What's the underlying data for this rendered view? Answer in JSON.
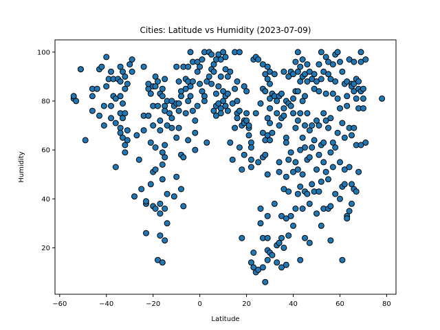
{
  "chart_data": {
    "type": "scatter",
    "title": "Cities: Latitude vs Humidity (2023-07-09)",
    "xlabel": "Latitude",
    "ylabel": "Humidity",
    "xlim": [
      -62,
      84
    ],
    "ylim": [
      1,
      105
    ],
    "xticks": [
      -60,
      -40,
      -20,
      0,
      20,
      40,
      60,
      80
    ],
    "yticks": [
      20,
      40,
      60,
      80,
      100
    ],
    "grid": false,
    "marker_color": "#1f77b4",
    "edge_color": "#000000",
    "points": [
      [
        -54,
        81
      ],
      [
        -54,
        82
      ],
      [
        -53,
        80
      ],
      [
        -51,
        93
      ],
      [
        -51,
        93
      ],
      [
        -49,
        64
      ],
      [
        -46,
        85
      ],
      [
        -46,
        76
      ],
      [
        -46,
        82
      ],
      [
        -44,
        85
      ],
      [
        -43,
        93
      ],
      [
        -43,
        74
      ],
      [
        -42,
        94
      ],
      [
        -41,
        70
      ],
      [
        -41,
        78
      ],
      [
        -40,
        86
      ],
      [
        -40,
        98
      ],
      [
        -39,
        89
      ],
      [
        -38,
        92
      ],
      [
        -38,
        78
      ],
      [
        -38,
        73
      ],
      [
        -37,
        89
      ],
      [
        -37,
        82
      ],
      [
        -36,
        81
      ],
      [
        -36,
        71
      ],
      [
        -36,
        53
      ],
      [
        -35,
        89
      ],
      [
        -34,
        94
      ],
      [
        -34,
        88
      ],
      [
        -34,
        82
      ],
      [
        -34,
        75
      ],
      [
        -34,
        69
      ],
      [
        -34,
        67
      ],
      [
        -33,
        92
      ],
      [
        -33,
        79
      ],
      [
        -33,
        73
      ],
      [
        -33,
        65
      ],
      [
        -32,
        90
      ],
      [
        -32,
        85
      ],
      [
        -32,
        75
      ],
      [
        -32,
        62
      ],
      [
        -32,
        59
      ],
      [
        -31,
        87
      ],
      [
        -31,
        68
      ],
      [
        -31,
        64
      ],
      [
        -30,
        95
      ],
      [
        -29,
        97
      ],
      [
        -29,
        92
      ],
      [
        -28,
        41
      ],
      [
        -27,
        66
      ],
      [
        -26,
        56
      ],
      [
        -25,
        44
      ],
      [
        -24,
        68
      ],
      [
        -24,
        74
      ],
      [
        -24,
        94
      ],
      [
        -23,
        38
      ],
      [
        -23,
        26
      ],
      [
        -23,
        39
      ],
      [
        -22,
        85
      ],
      [
        -22,
        87
      ],
      [
        -22,
        74
      ],
      [
        -21,
        83
      ],
      [
        -21,
        63
      ],
      [
        -21,
        46
      ],
      [
        -20,
        86
      ],
      [
        -20,
        78
      ],
      [
        -20,
        70
      ],
      [
        -20,
        51
      ],
      [
        -20,
        37
      ],
      [
        -19,
        90
      ],
      [
        -19,
        86
      ],
      [
        -19,
        61
      ],
      [
        -19,
        52
      ],
      [
        -19,
        36
      ],
      [
        -18,
        88
      ],
      [
        -18,
        78
      ],
      [
        -18,
        15
      ],
      [
        -17,
        83
      ],
      [
        -17,
        72
      ],
      [
        -17,
        68
      ],
      [
        -17,
        38
      ],
      [
        -17,
        34
      ],
      [
        -17,
        25
      ],
      [
        -16,
        85
      ],
      [
        -16,
        82
      ],
      [
        -16,
        59
      ],
      [
        -16,
        54
      ],
      [
        -16,
        48
      ],
      [
        -16,
        14
      ],
      [
        -15,
        89
      ],
      [
        -15,
        78
      ],
      [
        -15,
        76
      ],
      [
        -15,
        62
      ],
      [
        -15,
        57
      ],
      [
        -15,
        36
      ],
      [
        -15,
        23
      ],
      [
        -14,
        80
      ],
      [
        -14,
        70
      ],
      [
        -14,
        42
      ],
      [
        -14,
        30
      ],
      [
        -13,
        75
      ],
      [
        -12,
        73
      ],
      [
        -12,
        69
      ],
      [
        -12,
        80
      ],
      [
        -11,
        78
      ],
      [
        -11,
        41
      ],
      [
        -10,
        94
      ],
      [
        -10,
        79
      ],
      [
        -10,
        65
      ],
      [
        -10,
        49
      ],
      [
        -9,
        88
      ],
      [
        -9,
        76
      ],
      [
        -9,
        69
      ],
      [
        -9,
        79
      ],
      [
        -8,
        82
      ],
      [
        -8,
        84
      ],
      [
        -8,
        58
      ],
      [
        -8,
        44
      ],
      [
        -7,
        94
      ],
      [
        -7,
        57
      ],
      [
        -7,
        37
      ],
      [
        -6,
        89
      ],
      [
        -6,
        85
      ],
      [
        -6,
        75
      ],
      [
        -5,
        94
      ],
      [
        -5,
        88
      ],
      [
        -5,
        80
      ],
      [
        -5,
        64
      ],
      [
        -4,
        100
      ],
      [
        -4,
        86
      ],
      [
        -4,
        82
      ],
      [
        -3,
        96
      ],
      [
        -3,
        88
      ],
      [
        -3,
        76
      ],
      [
        -2,
        72
      ],
      [
        -2,
        67
      ],
      [
        -2,
        60
      ],
      [
        -1,
        96
      ],
      [
        -1,
        92
      ],
      [
        -1,
        78
      ],
      [
        0,
        94
      ],
      [
        0,
        87
      ],
      [
        1,
        97
      ],
      [
        1,
        84
      ],
      [
        2,
        100
      ],
      [
        2,
        80
      ],
      [
        2,
        82
      ],
      [
        3,
        88
      ],
      [
        3,
        63
      ],
      [
        4,
        100
      ],
      [
        4,
        90
      ],
      [
        5,
        87
      ],
      [
        5,
        93
      ],
      [
        5,
        99
      ],
      [
        6,
        92
      ],
      [
        6,
        76
      ],
      [
        6,
        95
      ],
      [
        7,
        78
      ],
      [
        7,
        83
      ],
      [
        7,
        74
      ],
      [
        7,
        97
      ],
      [
        8,
        99
      ],
      [
        8,
        86
      ],
      [
        8,
        79
      ],
      [
        9,
        97
      ],
      [
        9,
        77
      ],
      [
        9,
        75
      ],
      [
        9,
        90
      ],
      [
        10,
        100
      ],
      [
        10,
        84
      ],
      [
        10,
        80
      ],
      [
        11,
        98
      ],
      [
        11,
        93
      ],
      [
        11,
        78
      ],
      [
        11,
        82
      ],
      [
        12,
        90
      ],
      [
        12,
        83
      ],
      [
        12,
        76
      ],
      [
        13,
        92
      ],
      [
        13,
        63
      ],
      [
        14,
        56
      ],
      [
        14,
        79
      ],
      [
        15,
        85
      ],
      [
        15,
        100
      ],
      [
        15,
        69
      ],
      [
        16,
        88
      ],
      [
        16,
        80
      ],
      [
        16,
        75
      ],
      [
        16,
        73
      ],
      [
        17,
        100
      ],
      [
        17,
        76
      ],
      [
        17,
        61
      ],
      [
        18,
        52
      ],
      [
        18,
        70
      ],
      [
        18,
        24
      ],
      [
        19,
        86
      ],
      [
        19,
        72
      ],
      [
        19,
        71
      ],
      [
        19,
        58
      ],
      [
        20,
        84
      ],
      [
        20,
        75
      ],
      [
        20,
        72
      ],
      [
        21,
        69
      ],
      [
        21,
        70
      ],
      [
        21,
        66
      ],
      [
        22,
        63
      ],
      [
        22,
        61
      ],
      [
        22,
        56
      ],
      [
        22,
        53
      ],
      [
        22,
        14
      ],
      [
        23,
        97
      ],
      [
        23,
        18
      ],
      [
        23,
        12
      ],
      [
        24,
        98
      ],
      [
        24,
        75
      ],
      [
        24,
        10
      ],
      [
        25,
        97
      ],
      [
        25,
        55
      ],
      [
        25,
        11
      ],
      [
        26,
        79
      ],
      [
        26,
        36
      ],
      [
        26,
        30
      ],
      [
        27,
        95
      ],
      [
        27,
        85
      ],
      [
        27,
        67
      ],
      [
        27,
        57
      ],
      [
        27,
        12
      ],
      [
        27,
        24
      ],
      [
        28,
        91
      ],
      [
        28,
        84
      ],
      [
        28,
        64
      ],
      [
        28,
        58
      ],
      [
        28,
        6
      ],
      [
        29,
        94
      ],
      [
        29,
        89
      ],
      [
        29,
        73
      ],
      [
        29,
        66
      ],
      [
        29,
        50
      ],
      [
        29,
        33
      ],
      [
        29,
        24
      ],
      [
        29,
        19
      ],
      [
        29,
        15
      ],
      [
        30,
        92
      ],
      [
        30,
        87
      ],
      [
        30,
        81
      ],
      [
        30,
        77
      ],
      [
        30,
        71
      ],
      [
        30,
        64
      ],
      [
        30,
        18
      ],
      [
        31,
        83
      ],
      [
        31,
        67
      ],
      [
        31,
        17
      ],
      [
        32,
        91
      ],
      [
        32,
        82
      ],
      [
        32,
        38
      ],
      [
        33,
        80
      ],
      [
        33,
        75
      ],
      [
        33,
        21
      ],
      [
        33,
        14
      ],
      [
        34,
        82
      ],
      [
        34,
        70
      ],
      [
        34,
        55
      ],
      [
        34,
        51
      ],
      [
        34,
        22
      ],
      [
        35,
        83
      ],
      [
        35,
        73
      ],
      [
        35,
        33
      ],
      [
        35,
        24
      ],
      [
        35,
        12
      ],
      [
        36,
        92
      ],
      [
        36,
        77
      ],
      [
        36,
        74
      ],
      [
        36,
        44
      ],
      [
        36,
        20
      ],
      [
        37,
        80
      ],
      [
        37,
        65
      ],
      [
        37,
        63
      ],
      [
        37,
        49
      ],
      [
        37,
        32
      ],
      [
        37,
        13
      ],
      [
        38,
        90
      ],
      [
        38,
        79
      ],
      [
        38,
        56
      ],
      [
        38,
        43
      ],
      [
        38,
        25
      ],
      [
        39,
        92
      ],
      [
        39,
        78
      ],
      [
        39,
        59
      ],
      [
        39,
        33
      ],
      [
        40,
        91
      ],
      [
        40,
        81
      ],
      [
        40,
        75
      ],
      [
        40,
        51
      ],
      [
        40,
        29
      ],
      [
        41,
        96
      ],
      [
        41,
        84
      ],
      [
        41,
        69
      ],
      [
        41,
        55
      ],
      [
        41,
        36
      ],
      [
        42,
        100
      ],
      [
        42,
        92
      ],
      [
        42,
        84
      ],
      [
        42,
        72
      ],
      [
        42,
        52
      ],
      [
        42,
        42
      ],
      [
        43,
        94
      ],
      [
        43,
        88
      ],
      [
        43,
        75
      ],
      [
        43,
        60
      ],
      [
        43,
        45
      ],
      [
        43,
        15
      ],
      [
        44,
        97
      ],
      [
        44,
        90
      ],
      [
        44,
        80
      ],
      [
        44,
        65
      ],
      [
        44,
        50
      ],
      [
        44,
        36
      ],
      [
        45,
        91
      ],
      [
        45,
        82
      ],
      [
        45,
        70
      ],
      [
        45,
        61
      ],
      [
        45,
        43
      ],
      [
        45,
        24
      ],
      [
        46,
        95
      ],
      [
        46,
        88
      ],
      [
        46,
        75
      ],
      [
        46,
        56
      ],
      [
        46,
        42
      ],
      [
        47,
        92
      ],
      [
        47,
        68
      ],
      [
        47,
        57
      ],
      [
        47,
        38
      ],
      [
        47,
        22
      ],
      [
        48,
        89
      ],
      [
        48,
        70
      ],
      [
        48,
        61
      ],
      [
        48,
        46
      ],
      [
        49,
        91
      ],
      [
        49,
        85
      ],
      [
        49,
        64
      ],
      [
        49,
        43
      ],
      [
        50,
        88
      ],
      [
        50,
        72
      ],
      [
        50,
        52
      ],
      [
        50,
        34
      ],
      [
        51,
        95
      ],
      [
        51,
        84
      ],
      [
        51,
        70
      ],
      [
        51,
        58
      ],
      [
        51,
        43
      ],
      [
        52,
        100
      ],
      [
        52,
        89
      ],
      [
        52,
        62
      ],
      [
        52,
        47
      ],
      [
        52,
        29
      ],
      [
        53,
        92
      ],
      [
        53,
        75
      ],
      [
        53,
        63
      ],
      [
        53,
        55
      ],
      [
        53,
        36
      ],
      [
        54,
        98
      ],
      [
        54,
        83
      ],
      [
        54,
        72
      ],
      [
        54,
        51
      ],
      [
        55,
        96
      ],
      [
        55,
        91
      ],
      [
        55,
        69
      ],
      [
        55,
        48
      ],
      [
        55,
        36
      ],
      [
        56,
        89
      ],
      [
        56,
        73
      ],
      [
        56,
        59
      ],
      [
        56,
        37
      ],
      [
        56,
        23
      ],
      [
        57,
        95
      ],
      [
        57,
        83
      ],
      [
        57,
        63
      ],
      [
        57,
        53
      ],
      [
        58,
        99
      ],
      [
        58,
        88
      ],
      [
        58,
        61
      ],
      [
        58,
        42
      ],
      [
        59,
        100
      ],
      [
        59,
        81
      ],
      [
        59,
        67
      ],
      [
        60,
        96
      ],
      [
        60,
        77
      ],
      [
        60,
        55
      ],
      [
        60,
        40
      ],
      [
        61,
        92
      ],
      [
        61,
        71
      ],
      [
        61,
        45
      ],
      [
        61,
        15
      ],
      [
        62,
        87
      ],
      [
        62,
        65
      ],
      [
        62,
        52
      ],
      [
        62,
        46
      ],
      [
        63,
        88
      ],
      [
        63,
        82
      ],
      [
        63,
        78
      ],
      [
        63,
        33
      ],
      [
        63,
        32
      ],
      [
        64,
        97
      ],
      [
        64,
        69
      ],
      [
        64,
        53
      ],
      [
        64,
        35
      ],
      [
        65,
        87
      ],
      [
        65,
        86
      ],
      [
        65,
        66
      ],
      [
        65,
        46
      ],
      [
        65,
        38
      ],
      [
        66,
        96
      ],
      [
        66,
        87
      ],
      [
        66,
        84
      ],
      [
        66,
        69
      ],
      [
        66,
        44
      ],
      [
        67,
        89
      ],
      [
        67,
        81
      ],
      [
        67,
        62
      ],
      [
        67,
        43
      ],
      [
        68,
        88
      ],
      [
        68,
        85
      ],
      [
        68,
        77
      ],
      [
        68,
        51
      ],
      [
        69,
        96
      ],
      [
        69,
        100
      ],
      [
        69,
        84
      ],
      [
        69,
        62
      ],
      [
        70,
        85
      ],
      [
        70,
        81
      ],
      [
        70,
        77
      ],
      [
        71,
        97
      ],
      [
        71,
        63
      ],
      [
        78,
        81
      ]
    ]
  }
}
